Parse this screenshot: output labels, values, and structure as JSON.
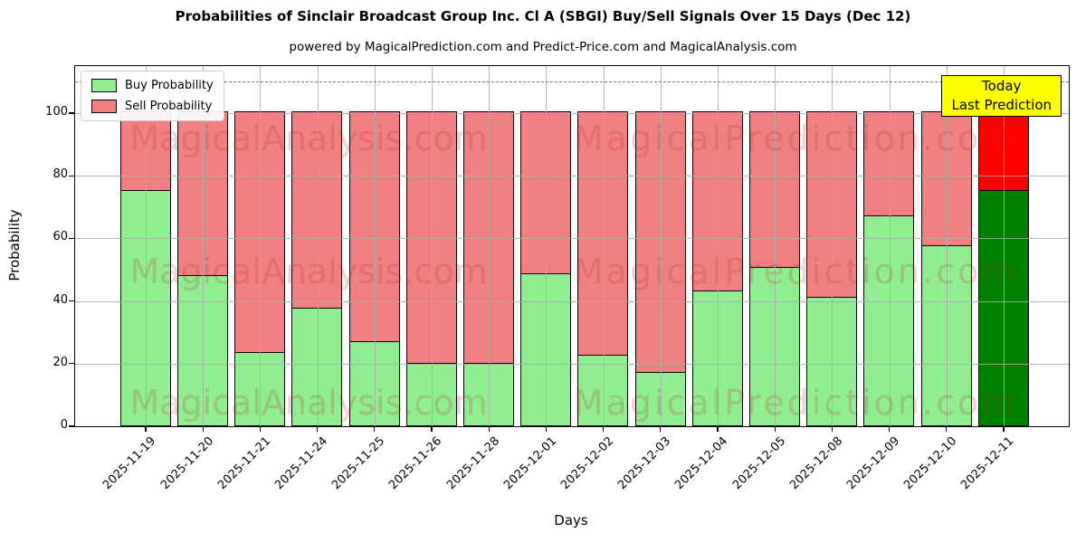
{
  "header": {
    "title": "Probabilities of Sinclair Broadcast Group Inc. Cl A (SBGI) Buy/Sell Signals Over 15 Days (Dec 12)",
    "subtitle": "powered by MagicalPrediction.com and Predict-Price.com and MagicalAnalysis.com"
  },
  "legend": {
    "items": [
      {
        "label": "Buy Probability",
        "color": "#90ee90"
      },
      {
        "label": "Sell Probability",
        "color": "#f08080"
      }
    ]
  },
  "annotation": {
    "line1": "Today",
    "line2": "Last Prediction",
    "bg": "#ffff00"
  },
  "watermarks": {
    "left": "MagicalAnalysis.com",
    "right": "MagicalPrediction.com"
  },
  "chart_data": {
    "type": "bar",
    "stacked": true,
    "title": "Probabilities of Sinclair Broadcast Group Inc. Cl A (SBGI) Buy/Sell Signals Over 15 Days (Dec 12)",
    "xlabel": "Days",
    "ylabel": "Probability",
    "ylim": [
      0,
      115
    ],
    "yticks": [
      0,
      20,
      40,
      60,
      80,
      100
    ],
    "dashed_line_y": 110,
    "grid": true,
    "legend_position": "upper-left",
    "today_index": 15,
    "categories": [
      "2025-11-19",
      "2025-11-20",
      "2025-11-21",
      "2025-11-24",
      "2025-11-25",
      "2025-11-26",
      "2025-11-28",
      "2025-12-01",
      "2025-12-02",
      "2025-12-03",
      "2025-12-04",
      "2025-12-05",
      "2025-12-08",
      "2025-12-09",
      "2025-12-10",
      "2025-12-11"
    ],
    "series": [
      {
        "name": "Buy Probability",
        "color": "#90ee90",
        "today_color": "#008000",
        "values": [
          75,
          48,
          23.5,
          37.5,
          27,
          20,
          20,
          48.5,
          22.5,
          17,
          43,
          50.5,
          41,
          67,
          57.5,
          75
        ]
      },
      {
        "name": "Sell Probability",
        "color": "#f08080",
        "today_color": "#ff0000",
        "values": [
          25,
          52,
          76.5,
          62.5,
          73,
          80,
          80,
          51.5,
          77.5,
          83,
          57,
          49.5,
          59,
          33,
          42.5,
          25
        ]
      }
    ]
  }
}
